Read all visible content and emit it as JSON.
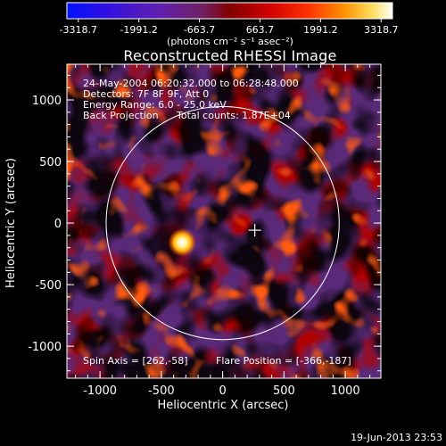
{
  "colorbar": {
    "tick_labels": [
      "-3318.7",
      "-1991.2",
      "-663.7",
      "663.7",
      "1991.2",
      "3318.7"
    ],
    "unit_label": "(photons cm⁻² s⁻¹ asec⁻²)"
  },
  "title": "Reconstructed RHESSI Image",
  "annotations": {
    "line1": "24-May-2004 06:20:32.000 to 06:28:48.000",
    "line2": "Detectors: 7F 8F 9F, Att 0",
    "line3": "Energy Range: 6.0 - 25.0 keV",
    "line4a": "Back Projection",
    "line4b": "Total counts: 1.87E+04",
    "bottom_left": "Spin Axis = [262,-58]",
    "bottom_right": "Flare Position = [-366,-187]"
  },
  "axes": {
    "xlabel": "Heliocentric X (arcsec)",
    "ylabel": "Heliocentric Y (arcsec)",
    "x_ticks": [
      "-1000",
      "-500",
      "0",
      "500",
      "1000"
    ],
    "y_ticks": [
      "1000",
      "500",
      "0",
      "-500",
      "-1000"
    ],
    "x_range": [
      -1270,
      1290
    ],
    "y_range": [
      -1260,
      1290
    ]
  },
  "markers": {
    "spin_axis": [
      262,
      -58
    ],
    "flare_position": [
      -366,
      -187
    ],
    "solar_limb_radius_arcsec": 950
  },
  "footer": {
    "timestamp": "19-Jun-2013 23:53"
  },
  "colors": {
    "background": "#000000",
    "text": "#ffffff",
    "colormap_low": "#0000ff",
    "colormap_mid": "#c00000",
    "colormap_high": "#ffffff"
  }
}
